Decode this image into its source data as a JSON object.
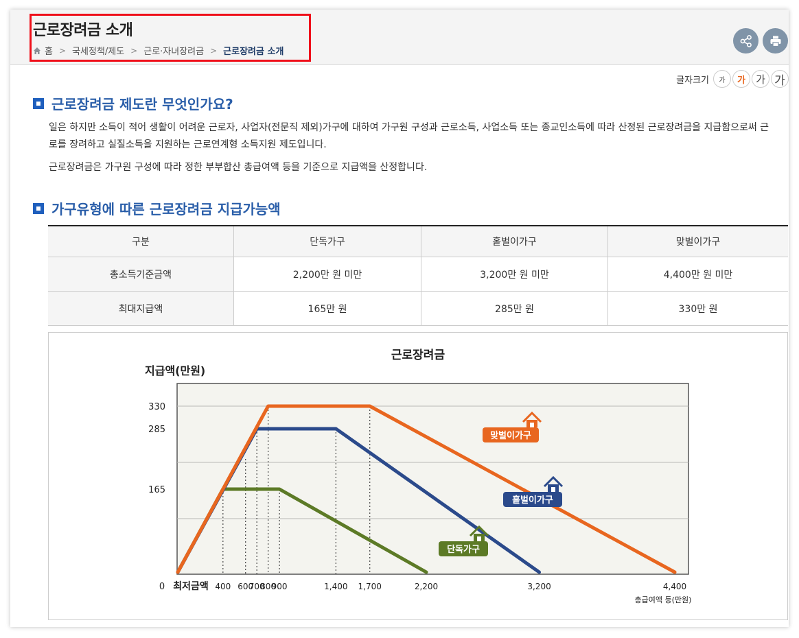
{
  "header": {
    "title": "근로장려금 소개",
    "breadcrumb": [
      "홈",
      "국세정책/제도",
      "근로·자녀장려금",
      "근로장려금 소개"
    ],
    "share_label": "share",
    "print_label": "print"
  },
  "font_size": {
    "label": "글자크기",
    "options": [
      "가",
      "가",
      "가",
      "가"
    ]
  },
  "section1": {
    "heading": "근로장려금 제도란 무엇인가요?",
    "p1": "일은 하지만 소득이 적어 생활이 어려운 근로자, 사업자(전문직 제외)가구에 대하여 가구원 구성과 근로소득, 사업소득 또는 종교인소득에 따라 산정된 근로장려금을 지급함으로써 근로를 장려하고 실질소득을 지원하는 근로연계형 소득지원 제도입니다.",
    "p2": "근로장려금은 가구원 구성에 따라 정한 부부합산 총급여액 등을 기준으로 지급액을 산정합니다."
  },
  "section2": {
    "heading": "가구유형에 따른 근로장려금 지급가능액"
  },
  "table": {
    "headers": [
      "구분",
      "단독가구",
      "홑벌이가구",
      "맞벌이가구"
    ],
    "rows": [
      [
        "총소득기준금액",
        "2,200만 원 미만",
        "3,200만 원 미만",
        "4,400만 원 미만"
      ],
      [
        "최대지급액",
        "165만 원",
        "285만 원",
        "330만 원"
      ]
    ]
  },
  "colors": {
    "orange": "#e8661f",
    "navy": "#2b4a8b",
    "green": "#5c7a26",
    "title_blue": "#2a5ea9"
  },
  "chart_data": {
    "type": "line",
    "title": "근로장려금",
    "ylabel": "지급액(만원)",
    "xlabel": "총급여액 등(만원)",
    "x_tick_labels": [
      "0",
      "최저금액",
      "400",
      "600",
      "700",
      "800",
      "900",
      "1,400",
      "1,700",
      "2,200",
      "3,200",
      "4,400"
    ],
    "y_tick_labels": [
      "165",
      "285",
      "330"
    ],
    "ylim": [
      0,
      380
    ],
    "series": [
      {
        "name": "단독가구",
        "color": "#5c7a26",
        "points": [
          [
            0,
            0
          ],
          [
            400,
            165
          ],
          [
            900,
            165
          ],
          [
            2200,
            0
          ]
        ]
      },
      {
        "name": "홑벌이가구",
        "color": "#2b4a8b",
        "points": [
          [
            0,
            0
          ],
          [
            700,
            285
          ],
          [
            1400,
            285
          ],
          [
            3200,
            0
          ]
        ]
      },
      {
        "name": "맞벌이가구",
        "color": "#e8661f",
        "points": [
          [
            0,
            0
          ],
          [
            800,
            330
          ],
          [
            1700,
            330
          ],
          [
            4400,
            0
          ]
        ]
      }
    ]
  }
}
